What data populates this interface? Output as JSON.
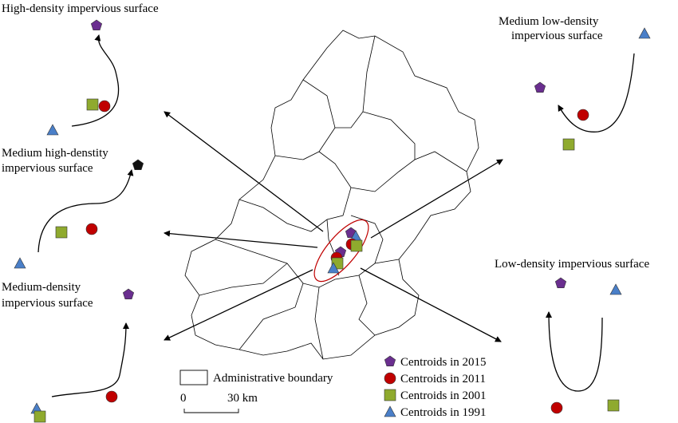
{
  "panels": [
    {
      "title": [
        "High-density impervious surface"
      ]
    },
    {
      "title": [
        "Medium low-density",
        "impervious surface"
      ]
    },
    {
      "title": [
        "Medium high-denstity",
        "impervious surface"
      ]
    },
    {
      "title": [
        "Medium-density",
        "impervious surface"
      ]
    },
    {
      "title": [
        "Low-density impervious surface"
      ]
    }
  ],
  "legend": {
    "boundary": "Administrative boundary",
    "scale": [
      "0",
      "30 km"
    ],
    "centroids": [
      "Centroids in 2015",
      "Centroids in 2011",
      "Centroids in 2001",
      "Centroids in 1991"
    ]
  }
}
